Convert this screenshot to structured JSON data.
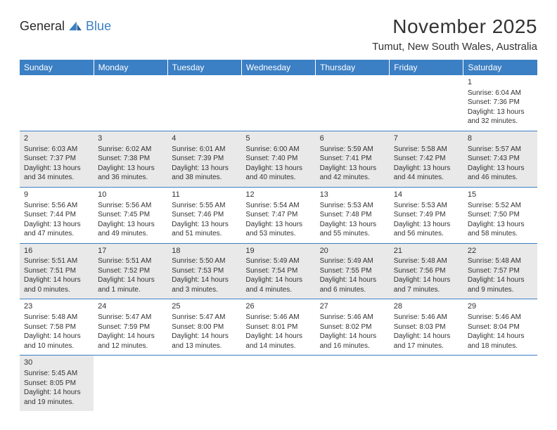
{
  "brand": {
    "part1": "General",
    "part2": "Blue"
  },
  "title": "November 2025",
  "location": "Tumut, New South Wales, Australia",
  "colors": {
    "header_bg": "#3b7fc4",
    "shaded_bg": "#e9e9e9",
    "rule": "#3b7fc4"
  },
  "weekdays": [
    "Sunday",
    "Monday",
    "Tuesday",
    "Wednesday",
    "Thursday",
    "Friday",
    "Saturday"
  ],
  "weeks": [
    {
      "shaded": false,
      "days": [
        null,
        null,
        null,
        null,
        null,
        null,
        {
          "n": "1",
          "sunrise": "Sunrise: 6:04 AM",
          "sunset": "Sunset: 7:36 PM",
          "daylight": "Daylight: 13 hours and 32 minutes."
        }
      ]
    },
    {
      "shaded": true,
      "days": [
        {
          "n": "2",
          "sunrise": "Sunrise: 6:03 AM",
          "sunset": "Sunset: 7:37 PM",
          "daylight": "Daylight: 13 hours and 34 minutes."
        },
        {
          "n": "3",
          "sunrise": "Sunrise: 6:02 AM",
          "sunset": "Sunset: 7:38 PM",
          "daylight": "Daylight: 13 hours and 36 minutes."
        },
        {
          "n": "4",
          "sunrise": "Sunrise: 6:01 AM",
          "sunset": "Sunset: 7:39 PM",
          "daylight": "Daylight: 13 hours and 38 minutes."
        },
        {
          "n": "5",
          "sunrise": "Sunrise: 6:00 AM",
          "sunset": "Sunset: 7:40 PM",
          "daylight": "Daylight: 13 hours and 40 minutes."
        },
        {
          "n": "6",
          "sunrise": "Sunrise: 5:59 AM",
          "sunset": "Sunset: 7:41 PM",
          "daylight": "Daylight: 13 hours and 42 minutes."
        },
        {
          "n": "7",
          "sunrise": "Sunrise: 5:58 AM",
          "sunset": "Sunset: 7:42 PM",
          "daylight": "Daylight: 13 hours and 44 minutes."
        },
        {
          "n": "8",
          "sunrise": "Sunrise: 5:57 AM",
          "sunset": "Sunset: 7:43 PM",
          "daylight": "Daylight: 13 hours and 46 minutes."
        }
      ]
    },
    {
      "shaded": false,
      "days": [
        {
          "n": "9",
          "sunrise": "Sunrise: 5:56 AM",
          "sunset": "Sunset: 7:44 PM",
          "daylight": "Daylight: 13 hours and 47 minutes."
        },
        {
          "n": "10",
          "sunrise": "Sunrise: 5:56 AM",
          "sunset": "Sunset: 7:45 PM",
          "daylight": "Daylight: 13 hours and 49 minutes."
        },
        {
          "n": "11",
          "sunrise": "Sunrise: 5:55 AM",
          "sunset": "Sunset: 7:46 PM",
          "daylight": "Daylight: 13 hours and 51 minutes."
        },
        {
          "n": "12",
          "sunrise": "Sunrise: 5:54 AM",
          "sunset": "Sunset: 7:47 PM",
          "daylight": "Daylight: 13 hours and 53 minutes."
        },
        {
          "n": "13",
          "sunrise": "Sunrise: 5:53 AM",
          "sunset": "Sunset: 7:48 PM",
          "daylight": "Daylight: 13 hours and 55 minutes."
        },
        {
          "n": "14",
          "sunrise": "Sunrise: 5:53 AM",
          "sunset": "Sunset: 7:49 PM",
          "daylight": "Daylight: 13 hours and 56 minutes."
        },
        {
          "n": "15",
          "sunrise": "Sunrise: 5:52 AM",
          "sunset": "Sunset: 7:50 PM",
          "daylight": "Daylight: 13 hours and 58 minutes."
        }
      ]
    },
    {
      "shaded": true,
      "days": [
        {
          "n": "16",
          "sunrise": "Sunrise: 5:51 AM",
          "sunset": "Sunset: 7:51 PM",
          "daylight": "Daylight: 14 hours and 0 minutes."
        },
        {
          "n": "17",
          "sunrise": "Sunrise: 5:51 AM",
          "sunset": "Sunset: 7:52 PM",
          "daylight": "Daylight: 14 hours and 1 minute."
        },
        {
          "n": "18",
          "sunrise": "Sunrise: 5:50 AM",
          "sunset": "Sunset: 7:53 PM",
          "daylight": "Daylight: 14 hours and 3 minutes."
        },
        {
          "n": "19",
          "sunrise": "Sunrise: 5:49 AM",
          "sunset": "Sunset: 7:54 PM",
          "daylight": "Daylight: 14 hours and 4 minutes."
        },
        {
          "n": "20",
          "sunrise": "Sunrise: 5:49 AM",
          "sunset": "Sunset: 7:55 PM",
          "daylight": "Daylight: 14 hours and 6 minutes."
        },
        {
          "n": "21",
          "sunrise": "Sunrise: 5:48 AM",
          "sunset": "Sunset: 7:56 PM",
          "daylight": "Daylight: 14 hours and 7 minutes."
        },
        {
          "n": "22",
          "sunrise": "Sunrise: 5:48 AM",
          "sunset": "Sunset: 7:57 PM",
          "daylight": "Daylight: 14 hours and 9 minutes."
        }
      ]
    },
    {
      "shaded": false,
      "days": [
        {
          "n": "23",
          "sunrise": "Sunrise: 5:48 AM",
          "sunset": "Sunset: 7:58 PM",
          "daylight": "Daylight: 14 hours and 10 minutes."
        },
        {
          "n": "24",
          "sunrise": "Sunrise: 5:47 AM",
          "sunset": "Sunset: 7:59 PM",
          "daylight": "Daylight: 14 hours and 12 minutes."
        },
        {
          "n": "25",
          "sunrise": "Sunrise: 5:47 AM",
          "sunset": "Sunset: 8:00 PM",
          "daylight": "Daylight: 14 hours and 13 minutes."
        },
        {
          "n": "26",
          "sunrise": "Sunrise: 5:46 AM",
          "sunset": "Sunset: 8:01 PM",
          "daylight": "Daylight: 14 hours and 14 minutes."
        },
        {
          "n": "27",
          "sunrise": "Sunrise: 5:46 AM",
          "sunset": "Sunset: 8:02 PM",
          "daylight": "Daylight: 14 hours and 16 minutes."
        },
        {
          "n": "28",
          "sunrise": "Sunrise: 5:46 AM",
          "sunset": "Sunset: 8:03 PM",
          "daylight": "Daylight: 14 hours and 17 minutes."
        },
        {
          "n": "29",
          "sunrise": "Sunrise: 5:46 AM",
          "sunset": "Sunset: 8:04 PM",
          "daylight": "Daylight: 14 hours and 18 minutes."
        }
      ]
    },
    {
      "shaded": true,
      "days": [
        {
          "n": "30",
          "sunrise": "Sunrise: 5:45 AM",
          "sunset": "Sunset: 8:05 PM",
          "daylight": "Daylight: 14 hours and 19 minutes."
        },
        null,
        null,
        null,
        null,
        null,
        null
      ]
    }
  ]
}
